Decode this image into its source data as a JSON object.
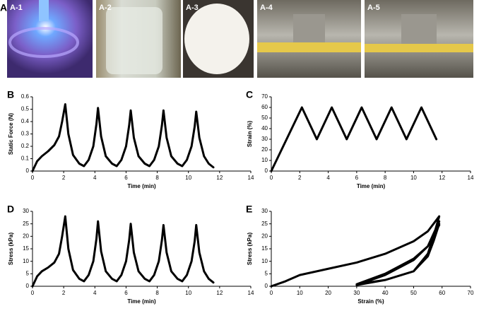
{
  "panel_label": "A",
  "photos": [
    {
      "label": "A-1"
    },
    {
      "label": "A-2"
    },
    {
      "label": "A-3"
    },
    {
      "label": "A-4"
    },
    {
      "label": "A-5"
    }
  ],
  "chart_data": [
    {
      "panel": "B",
      "type": "line",
      "color": "#000000",
      "x": [
        0,
        0.3,
        0.6,
        1.0,
        1.4,
        1.7,
        1.9,
        2.1,
        2.3,
        2.6,
        3.0,
        3.3,
        3.6,
        3.9,
        4.1,
        4.2,
        4.4,
        4.7,
        5.1,
        5.4,
        5.7,
        6.0,
        6.2,
        6.3,
        6.5,
        6.8,
        7.2,
        7.5,
        7.8,
        8.1,
        8.3,
        8.4,
        8.6,
        8.9,
        9.3,
        9.6,
        9.9,
        10.2,
        10.4,
        10.5,
        10.7,
        11.0,
        11.3,
        11.6
      ],
      "values": [
        0,
        0.08,
        0.12,
        0.16,
        0.21,
        0.28,
        0.4,
        0.54,
        0.3,
        0.13,
        0.06,
        0.04,
        0.09,
        0.2,
        0.38,
        0.51,
        0.28,
        0.12,
        0.06,
        0.04,
        0.09,
        0.2,
        0.37,
        0.49,
        0.27,
        0.12,
        0.06,
        0.04,
        0.09,
        0.2,
        0.37,
        0.49,
        0.27,
        0.12,
        0.06,
        0.04,
        0.09,
        0.2,
        0.36,
        0.48,
        0.27,
        0.12,
        0.06,
        0.03
      ],
      "xlabel": "Time (min)",
      "ylabel": "Static Force (N)",
      "xlim": [
        0,
        14
      ],
      "xticks": [
        0,
        2,
        4,
        6,
        8,
        10,
        12,
        14
      ],
      "ylim": [
        0,
        0.6
      ],
      "yticks": [
        0,
        0.1,
        0.2,
        0.3,
        0.4,
        0.5,
        0.6
      ]
    },
    {
      "panel": "C",
      "type": "line",
      "color": "#000000",
      "x": [
        0,
        2.15,
        3.2,
        4.25,
        5.3,
        6.35,
        7.4,
        8.45,
        9.5,
        10.55,
        11.6
      ],
      "values": [
        0,
        60,
        30,
        60,
        30,
        60,
        30,
        60,
        30,
        60,
        30
      ],
      "xlabel": "Time (min)",
      "ylabel": "Strain (%)",
      "xlim": [
        0,
        14
      ],
      "xticks": [
        0,
        2,
        4,
        6,
        8,
        10,
        12,
        14
      ],
      "ylim": [
        0,
        70
      ],
      "yticks": [
        0,
        10,
        20,
        30,
        40,
        50,
        60,
        70
      ]
    },
    {
      "panel": "D",
      "type": "line",
      "color": "#000000",
      "x": [
        0,
        0.3,
        0.6,
        1.0,
        1.4,
        1.7,
        1.9,
        2.1,
        2.3,
        2.6,
        3.0,
        3.3,
        3.6,
        3.9,
        4.1,
        4.2,
        4.4,
        4.7,
        5.1,
        5.4,
        5.7,
        6.0,
        6.2,
        6.3,
        6.5,
        6.8,
        7.2,
        7.5,
        7.8,
        8.1,
        8.3,
        8.4,
        8.6,
        8.9,
        9.3,
        9.6,
        9.9,
        10.2,
        10.4,
        10.5,
        10.7,
        11.0,
        11.3,
        11.6
      ],
      "values": [
        0,
        4,
        6,
        7.5,
        9.5,
        13,
        20,
        28,
        15,
        6.5,
        3,
        2,
        4.5,
        10,
        19,
        26,
        14,
        6,
        3,
        2,
        4.5,
        10,
        18.5,
        25,
        13.5,
        6,
        3,
        2,
        4.5,
        10,
        18.5,
        24.5,
        13.5,
        6,
        3,
        2,
        4.5,
        10,
        18,
        24.5,
        13.5,
        6,
        3,
        1.5
      ],
      "xlabel": "Time (min)",
      "ylabel": "Stress (kPa)",
      "xlim": [
        0,
        14
      ],
      "xticks": [
        0,
        2,
        4,
        6,
        8,
        10,
        12,
        14
      ],
      "ylim": [
        0,
        30
      ],
      "yticks": [
        0,
        5,
        10,
        15,
        20,
        25,
        30
      ]
    },
    {
      "panel": "E",
      "type": "line",
      "color": "#000000",
      "x": [
        0,
        5,
        10,
        20,
        30,
        40,
        50,
        55,
        59,
        57,
        55,
        50,
        40,
        30,
        40,
        50,
        55,
        59,
        57,
        55,
        50,
        40,
        30,
        40,
        50,
        55,
        59,
        57,
        55,
        50,
        40,
        30,
        40,
        50,
        55,
        59
      ],
      "values": [
        0,
        2,
        4.5,
        7,
        9.5,
        13,
        18,
        22,
        28,
        20,
        13,
        6,
        2.5,
        0.5,
        4.5,
        10.5,
        16,
        26,
        19,
        12,
        6,
        2.5,
        0.8,
        5,
        11,
        16,
        25,
        18,
        12,
        6,
        2.5,
        0.8,
        5,
        11,
        16,
        24.5
      ],
      "xlabel": "Strain (%)",
      "ylabel": "Stress (kPa)",
      "xlim": [
        0,
        70
      ],
      "xticks": [
        0,
        10,
        20,
        30,
        40,
        50,
        60,
        70
      ],
      "ylim": [
        0,
        30
      ],
      "yticks": [
        0,
        5,
        10,
        15,
        20,
        25,
        30
      ]
    }
  ]
}
